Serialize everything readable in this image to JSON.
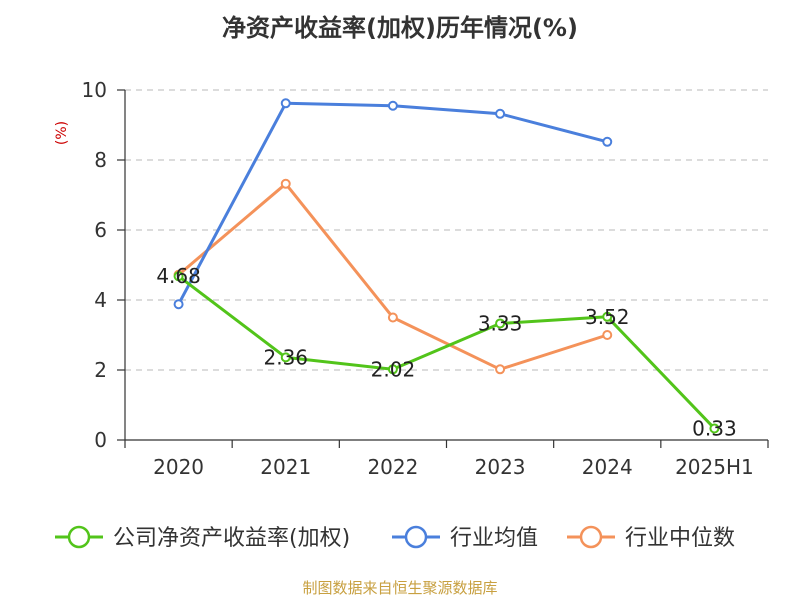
{
  "chart_data": {
    "type": "line",
    "title": "净资产收益率(加权)历年情况(%)",
    "unit": "(%)",
    "categories": [
      "2020",
      "2021",
      "2022",
      "2023",
      "2024",
      "2025H1"
    ],
    "ylim": [
      0,
      10
    ],
    "yticks": [
      0,
      2,
      4,
      6,
      8,
      10
    ],
    "grid": true,
    "legend_position": "bottom",
    "series": [
      {
        "name": "公司净资产收益率(加权)",
        "color": "#52c41a",
        "values": [
          4.68,
          2.36,
          2.02,
          3.33,
          3.52,
          0.33
        ],
        "labels": [
          "4.68",
          "2.36",
          "2.02",
          "3.33",
          "3.52",
          "0.33"
        ]
      },
      {
        "name": "行业均值",
        "color": "#4a7fdc",
        "values": [
          3.88,
          9.62,
          9.55,
          9.32,
          8.52,
          null
        ]
      },
      {
        "name": "行业中位数",
        "color": "#f4925a",
        "values": [
          4.72,
          7.32,
          3.5,
          2.02,
          3.0,
          null
        ]
      }
    ]
  },
  "source": "制图数据来自恒生聚源数据库"
}
